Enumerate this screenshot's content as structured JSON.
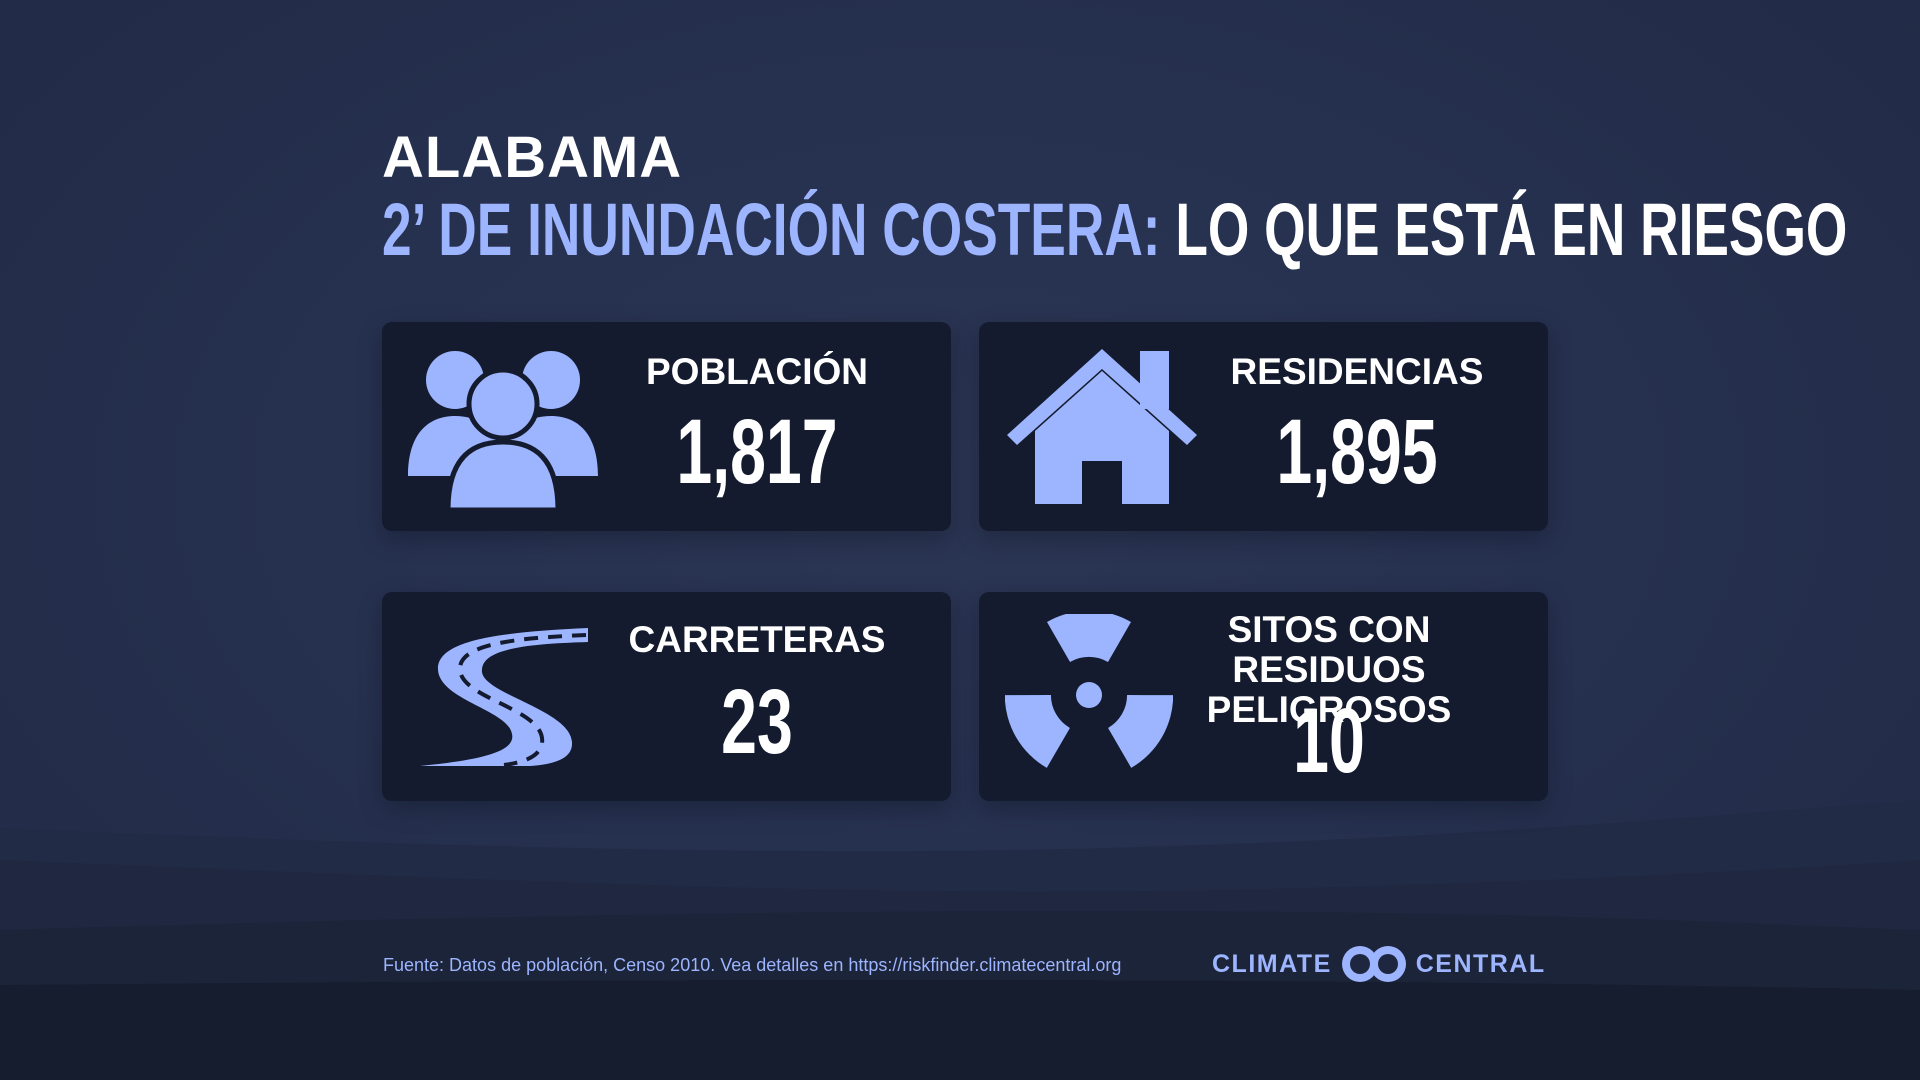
{
  "header": {
    "state": "ALABAMA",
    "headline_accent": "2’ DE INUNDACIÓN COSTERA:",
    "headline_rest": "LO QUE ESTÁ EN RIESGO"
  },
  "cards": [
    {
      "label": "POBLACIÓN",
      "value": "1,817",
      "icon": "people-icon"
    },
    {
      "label": "RESIDENCIAS",
      "value": "1,895",
      "icon": "house-icon"
    },
    {
      "label": "CARRETERAS",
      "value": "23",
      "icon": "road-icon"
    },
    {
      "label_line1": "SITOS CON RESIDUOS",
      "label_line2": "PELIGROSOS",
      "value": "10",
      "icon": "radiation-icon"
    }
  ],
  "footer": {
    "source": "Fuente: Datos de población, Censo 2010. Vea detalles en https://riskfinder.climatecentral.org",
    "logo_left": "CLIMATE",
    "logo_right": "CENTRAL"
  },
  "colors": {
    "accent": "#9db4ff",
    "card_background": "#141b2e",
    "page_background": "#28324d"
  }
}
